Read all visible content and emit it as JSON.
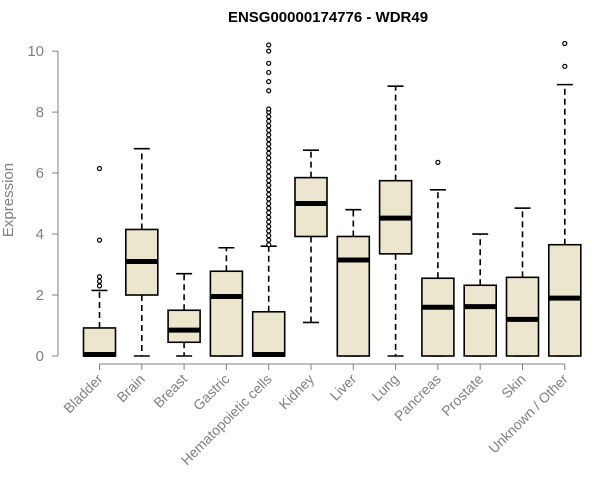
{
  "chart_data": {
    "type": "boxplot",
    "title": "ENSG00000174776 - WDR49",
    "xlabel": "",
    "ylabel": "Expression",
    "ylim": [
      0,
      10.2
    ],
    "yticks": [
      0,
      2,
      4,
      6,
      8,
      10
    ],
    "categories": [
      "Bladder",
      "Brain",
      "Breast",
      "Gastric",
      "Hematopoietic cells",
      "Kidney",
      "Liver",
      "Lung",
      "Pancreas",
      "Prostate",
      "Skin",
      "Unknown / Other"
    ],
    "boxes": [
      {
        "min": 0,
        "q1": 0,
        "median": 0.05,
        "q3": 0.92,
        "max": 2.15,
        "outliers": [
          2.3,
          2.45,
          2.6,
          3.8,
          6.15
        ]
      },
      {
        "min": 0,
        "q1": 2.0,
        "median": 3.1,
        "q3": 4.15,
        "max": 6.8,
        "outliers": []
      },
      {
        "min": 0,
        "q1": 0.45,
        "median": 0.85,
        "q3": 1.5,
        "max": 2.7,
        "outliers": []
      },
      {
        "min": 0,
        "q1": 0,
        "median": 1.95,
        "q3": 2.78,
        "max": 3.55,
        "outliers": []
      },
      {
        "min": 0,
        "q1": 0,
        "median": 0.05,
        "q3": 1.45,
        "max": 3.6,
        "outliers": [
          3.65,
          3.8,
          3.95,
          4.1,
          4.25,
          4.4,
          4.55,
          4.7,
          4.85,
          5.0,
          5.15,
          5.3,
          5.45,
          5.6,
          5.75,
          5.9,
          6.05,
          6.2,
          6.35,
          6.5,
          6.65,
          6.8,
          6.95,
          7.1,
          7.25,
          7.4,
          7.55,
          7.7,
          7.85,
          8.0,
          8.1,
          8.7,
          9.0,
          9.3,
          9.6,
          10.0,
          10.2
        ]
      },
      {
        "min": 1.1,
        "q1": 3.92,
        "median": 5.0,
        "q3": 5.85,
        "max": 6.75,
        "outliers": []
      },
      {
        "min": 0,
        "q1": 0,
        "median": 3.15,
        "q3": 3.92,
        "max": 4.8,
        "outliers": []
      },
      {
        "min": 0,
        "q1": 3.35,
        "median": 4.52,
        "q3": 5.75,
        "max": 8.85,
        "outliers": []
      },
      {
        "min": 0,
        "q1": 0,
        "median": 1.6,
        "q3": 2.55,
        "max": 5.45,
        "outliers": [
          6.35
        ]
      },
      {
        "min": 0,
        "q1": 0,
        "median": 1.62,
        "q3": 2.32,
        "max": 4.0,
        "outliers": []
      },
      {
        "min": 0,
        "q1": 0,
        "median": 1.2,
        "q3": 2.58,
        "max": 4.85,
        "outliers": []
      },
      {
        "min": 0,
        "q1": 0,
        "median": 1.9,
        "q3": 3.65,
        "max": 8.9,
        "outliers": [
          9.5,
          10.25
        ]
      }
    ]
  }
}
